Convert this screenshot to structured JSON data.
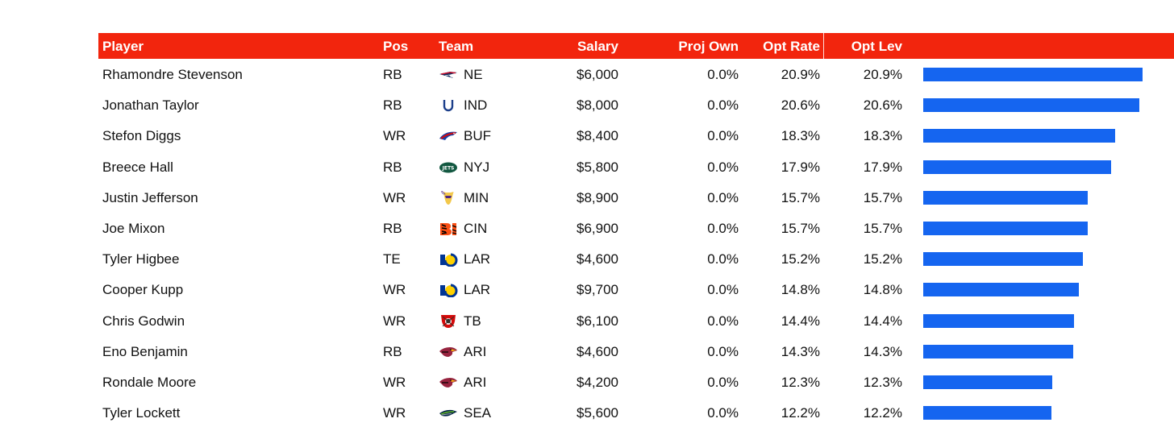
{
  "table": {
    "columns": {
      "player": "Player",
      "pos": "Pos",
      "team": "Team",
      "salary": "Salary",
      "proj_own": "Proj Own",
      "opt_rate": "Opt Rate",
      "opt_lev": "Opt Lev"
    },
    "bar_color": "#1565f0",
    "header_color": "#f2250d",
    "bar_scale_max": 20.9,
    "rows": [
      {
        "player": "Rhamondre Stevenson",
        "pos": "RB",
        "team": "NE",
        "team_logo": "patriots-logo-icon",
        "salary": "$6,000",
        "proj_own": "0.0%",
        "opt_rate": "20.9%",
        "opt_lev": "20.9%",
        "bar_value": 20.9
      },
      {
        "player": "Jonathan Taylor",
        "pos": "RB",
        "team": "IND",
        "team_logo": "colts-horseshoe-logo-icon",
        "salary": "$8,000",
        "proj_own": "0.0%",
        "opt_rate": "20.6%",
        "opt_lev": "20.6%",
        "bar_value": 20.6
      },
      {
        "player": "Stefon Diggs",
        "pos": "WR",
        "team": "BUF",
        "team_logo": "bills-logo-icon",
        "salary": "$8,400",
        "proj_own": "0.0%",
        "opt_rate": "18.3%",
        "opt_lev": "18.3%",
        "bar_value": 18.3
      },
      {
        "player": "Breece Hall",
        "pos": "RB",
        "team": "NYJ",
        "team_logo": "jets-logo-icon",
        "salary": "$5,800",
        "proj_own": "0.0%",
        "opt_rate": "17.9%",
        "opt_lev": "17.9%",
        "bar_value": 17.9
      },
      {
        "player": "Justin Jefferson",
        "pos": "WR",
        "team": "MIN",
        "team_logo": "vikings-logo-icon",
        "salary": "$8,900",
        "proj_own": "0.0%",
        "opt_rate": "15.7%",
        "opt_lev": "15.7%",
        "bar_value": 15.7
      },
      {
        "player": "Joe Mixon",
        "pos": "RB",
        "team": "CIN",
        "team_logo": "bengals-logo-icon",
        "salary": "$6,900",
        "proj_own": "0.0%",
        "opt_rate": "15.7%",
        "opt_lev": "15.7%",
        "bar_value": 15.7
      },
      {
        "player": "Tyler Higbee",
        "pos": "TE",
        "team": "LAR",
        "team_logo": "rams-logo-icon",
        "salary": "$4,600",
        "proj_own": "0.0%",
        "opt_rate": "15.2%",
        "opt_lev": "15.2%",
        "bar_value": 15.2
      },
      {
        "player": "Cooper Kupp",
        "pos": "WR",
        "team": "LAR",
        "team_logo": "rams-logo-icon",
        "salary": "$9,700",
        "proj_own": "0.0%",
        "opt_rate": "14.8%",
        "opt_lev": "14.8%",
        "bar_value": 14.8
      },
      {
        "player": "Chris Godwin",
        "pos": "WR",
        "team": "TB",
        "team_logo": "buccaneers-logo-icon",
        "salary": "$6,100",
        "proj_own": "0.0%",
        "opt_rate": "14.4%",
        "opt_lev": "14.4%",
        "bar_value": 14.4
      },
      {
        "player": "Eno Benjamin",
        "pos": "RB",
        "team": "ARI",
        "team_logo": "cardinals-logo-icon",
        "salary": "$4,600",
        "proj_own": "0.0%",
        "opt_rate": "14.3%",
        "opt_lev": "14.3%",
        "bar_value": 14.3
      },
      {
        "player": "Rondale Moore",
        "pos": "WR",
        "team": "ARI",
        "team_logo": "cardinals-logo-icon",
        "salary": "$4,200",
        "proj_own": "0.0%",
        "opt_rate": "12.3%",
        "opt_lev": "12.3%",
        "bar_value": 12.3
      },
      {
        "player": "Tyler Lockett",
        "pos": "WR",
        "team": "SEA",
        "team_logo": "seahawks-logo-icon",
        "salary": "$5,600",
        "proj_own": "0.0%",
        "opt_rate": "12.2%",
        "opt_lev": "12.2%",
        "bar_value": 12.2
      }
    ]
  }
}
